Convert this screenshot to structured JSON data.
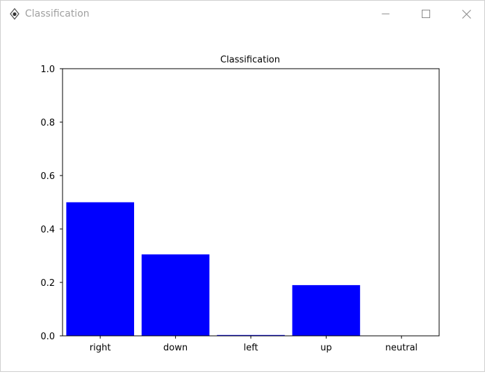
{
  "window": {
    "title": "Classification",
    "controls": {
      "minimize_icon": "minimize-icon",
      "maximize_icon": "maximize-icon",
      "close_icon": "close-icon"
    }
  },
  "colors": {
    "bar": "#0000ff",
    "title_text_inactive": "#a0a0a0"
  },
  "chart_data": {
    "type": "bar",
    "title": "Classification",
    "categories": [
      "right",
      "down",
      "left",
      "up",
      "neutral"
    ],
    "values": [
      0.5,
      0.305,
      0.003,
      0.19,
      0.0
    ],
    "ylim": [
      0,
      1.0
    ],
    "yticks": [
      "0.0",
      "0.2",
      "0.4",
      "0.6",
      "0.8",
      "1.0"
    ],
    "xlabel": "",
    "ylabel": "",
    "grid": false,
    "bar_color": "#0000ff"
  }
}
